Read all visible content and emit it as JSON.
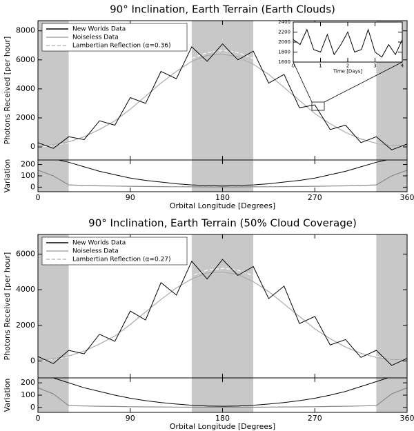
{
  "chart_data": [
    {
      "type": "line",
      "title": "90° Inclination, Earth Terrain (Earth Clouds)",
      "ylabel": "Photons Received [per hour]",
      "xlim": [
        0,
        360
      ],
      "ylim": [
        -900,
        8700
      ],
      "xticks": [
        0,
        90,
        180,
        270,
        360
      ],
      "yticks": [
        0,
        2000,
        4000,
        6000,
        8000
      ],
      "shaded_regions": [
        [
          0,
          30
        ],
        [
          150,
          210
        ],
        [
          330,
          360
        ]
      ],
      "legend": "upper left",
      "x": [
        0,
        15,
        30,
        45,
        60,
        75,
        90,
        105,
        120,
        135,
        150,
        165,
        180,
        195,
        210,
        225,
        240,
        255,
        270,
        285,
        300,
        315,
        330,
        345,
        360
      ],
      "series": [
        {
          "name": "New Worlds Data",
          "color": "#000000",
          "line_style": "solid",
          "values": [
            300,
            -100,
            700,
            500,
            1800,
            1500,
            3400,
            3000,
            5200,
            4700,
            6900,
            5900,
            7100,
            6000,
            6600,
            4400,
            5000,
            2700,
            2900,
            1200,
            1500,
            300,
            700,
            -200,
            200
          ]
        },
        {
          "name": "Noiseless Data",
          "color": "#aaaaaa",
          "line_style": "solid",
          "values": [
            50,
            150,
            350,
            700,
            1200,
            1800,
            2600,
            3500,
            4400,
            5200,
            5900,
            6300,
            6400,
            6200,
            5700,
            5000,
            4100,
            3200,
            2300,
            1600,
            1000,
            550,
            250,
            100,
            50
          ]
        },
        {
          "name": "Lambertian Reflection (α=0.36)",
          "color": "#ffffff",
          "line_style": "dashed",
          "values": [
            0,
            100,
            300,
            650,
            1150,
            1800,
            2650,
            3600,
            4550,
            5400,
            6100,
            6500,
            6650,
            6500,
            6100,
            5400,
            4550,
            3600,
            2650,
            1800,
            1150,
            650,
            300,
            100,
            0
          ]
        }
      ]
    },
    {
      "type": "line",
      "xlabel": "Orbital Longitude [Degrees]",
      "ylabel": "Variation",
      "xlim": [
        0,
        360
      ],
      "ylim": [
        -40,
        240
      ],
      "xticks": [
        0,
        90,
        180,
        270,
        360
      ],
      "yticks": [
        0,
        100,
        200
      ],
      "shaded_regions": [
        [
          0,
          30
        ],
        [
          150,
          210
        ],
        [
          330,
          360
        ]
      ],
      "x": [
        0,
        15,
        30,
        45,
        60,
        75,
        90,
        105,
        120,
        135,
        150,
        165,
        180,
        195,
        210,
        225,
        240,
        255,
        270,
        285,
        300,
        315,
        330,
        345,
        360
      ],
      "series": [
        {
          "color": "#000000",
          "line_style": "solid",
          "values": [
            250,
            250,
            220,
            180,
            140,
            110,
            80,
            60,
            45,
            30,
            20,
            15,
            10,
            15,
            20,
            30,
            45,
            60,
            80,
            110,
            140,
            180,
            220,
            250,
            250
          ]
        },
        {
          "color": "#888888",
          "line_style": "solid",
          "values": [
            150,
            100,
            20,
            15,
            12,
            10,
            8,
            6,
            5,
            4,
            3,
            2,
            2,
            2,
            3,
            4,
            5,
            6,
            8,
            10,
            12,
            15,
            20,
            100,
            150
          ]
        }
      ]
    },
    {
      "type": "line",
      "xlabel": "Time [Days]",
      "xlim": [
        0,
        4
      ],
      "ylim": [
        1600,
        2400
      ],
      "xticks": [
        0,
        1,
        2,
        3,
        4
      ],
      "yticks": [
        1600,
        1800,
        2000,
        2200,
        2400
      ],
      "x": [
        0,
        0.25,
        0.5,
        0.75,
        1,
        1.25,
        1.5,
        1.75,
        2,
        2.25,
        2.5,
        2.75,
        3,
        3.25,
        3.5,
        3.75,
        4
      ],
      "series": [
        {
          "color": "#000000",
          "line_style": "solid",
          "values": [
            2050,
            1950,
            2250,
            1850,
            1800,
            2150,
            1750,
            1950,
            2200,
            1800,
            1850,
            2250,
            1800,
            1700,
            1950,
            1750,
            2050
          ]
        }
      ]
    },
    {
      "type": "line",
      "title": "90° Inclination, Earth Terrain (50% Cloud Coverage)",
      "ylabel": "Photons Received [per hour]",
      "xlim": [
        0,
        360
      ],
      "ylim": [
        -950,
        7100
      ],
      "xticks": [
        0,
        90,
        180,
        270,
        360
      ],
      "yticks": [
        0,
        2000,
        4000,
        6000
      ],
      "shaded_regions": [
        [
          0,
          30
        ],
        [
          150,
          210
        ],
        [
          330,
          360
        ]
      ],
      "legend": "upper left",
      "x": [
        0,
        15,
        30,
        45,
        60,
        75,
        90,
        105,
        120,
        135,
        150,
        165,
        180,
        195,
        210,
        225,
        240,
        255,
        270,
        285,
        300,
        315,
        330,
        345,
        360
      ],
      "series": [
        {
          "name": "New Worlds Data",
          "color": "#000000",
          "line_style": "solid",
          "values": [
            250,
            -150,
            600,
            400,
            1500,
            1100,
            2800,
            2300,
            4400,
            3700,
            5600,
            4600,
            5700,
            4800,
            5300,
            3500,
            4200,
            2100,
            2500,
            900,
            1200,
            200,
            600,
            -250,
            150
          ]
        },
        {
          "name": "Noiseless Data",
          "color": "#aaaaaa",
          "line_style": "solid",
          "values": [
            40,
            120,
            280,
            550,
            950,
            1400,
            2050,
            2750,
            3450,
            4100,
            4600,
            4950,
            5000,
            4850,
            4450,
            3900,
            3200,
            2500,
            1800,
            1250,
            780,
            430,
            200,
            80,
            40
          ]
        },
        {
          "name": "Lambertian Reflection (α=0.27)",
          "color": "#ffffff",
          "line_style": "dashed",
          "values": [
            0,
            80,
            240,
            510,
            900,
            1420,
            2080,
            2830,
            3580,
            4240,
            4790,
            5100,
            5200,
            5100,
            4790,
            4240,
            3580,
            2830,
            2080,
            1420,
            900,
            510,
            240,
            80,
            0
          ]
        }
      ]
    },
    {
      "type": "line",
      "xlabel": "Orbital Longitude [Degrees]",
      "ylabel": "Variation",
      "xlim": [
        0,
        360
      ],
      "ylim": [
        -40,
        240
      ],
      "xticks": [
        0,
        90,
        180,
        270,
        360
      ],
      "yticks": [
        0,
        100,
        200
      ],
      "shaded_regions": [
        [
          0,
          30
        ],
        [
          150,
          210
        ],
        [
          330,
          360
        ]
      ],
      "x": [
        0,
        15,
        30,
        45,
        60,
        75,
        90,
        105,
        120,
        135,
        150,
        165,
        180,
        195,
        210,
        225,
        240,
        255,
        270,
        285,
        300,
        315,
        330,
        345,
        360
      ],
      "series": [
        {
          "color": "#000000",
          "line_style": "solid",
          "values": [
            250,
            240,
            200,
            160,
            130,
            100,
            75,
            55,
            40,
            28,
            18,
            12,
            10,
            12,
            18,
            28,
            40,
            55,
            75,
            100,
            130,
            170,
            210,
            250,
            250
          ]
        },
        {
          "color": "#888888",
          "line_style": "solid",
          "values": [
            160,
            110,
            15,
            12,
            10,
            8,
            6,
            5,
            4,
            3,
            2,
            2,
            2,
            2,
            2,
            3,
            4,
            5,
            6,
            8,
            10,
            12,
            15,
            110,
            160
          ]
        }
      ]
    }
  ]
}
